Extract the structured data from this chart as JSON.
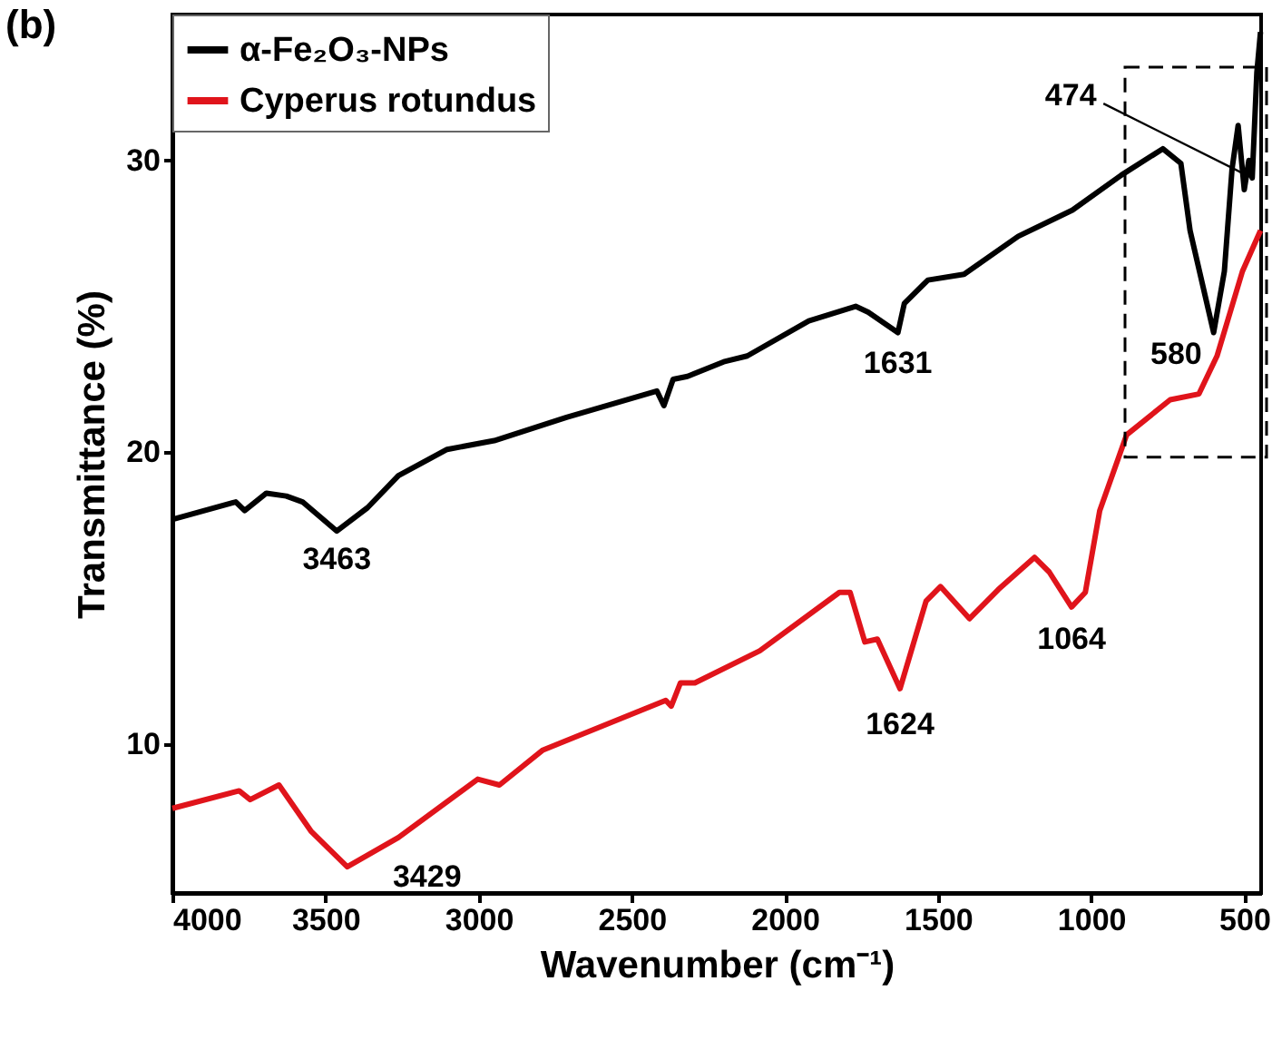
{
  "chart_data": {
    "type": "line",
    "xlabel": "Wavenumber (cm⁻¹)",
    "ylabel": "Transmittance (%)",
    "xlim": [
      4000,
      445
    ],
    "xticks": [
      4000,
      3500,
      3000,
      2500,
      2000,
      1500,
      1000,
      500
    ],
    "ylim": [
      4.9,
      35
    ],
    "yticks": [
      10,
      20,
      30
    ],
    "grid": false,
    "legend": "top left",
    "line_style": "solid",
    "marker": "none",
    "series": [
      {
        "name": "α-Fe₂O₃-NPs",
        "color": "#000000",
        "x": [
          4000,
          3793,
          3764,
          3693,
          3628,
          3575,
          3463,
          3363,
          3262,
          3103,
          2949,
          2713,
          2418,
          2395,
          2365,
          2318,
          2200,
          2123,
          1922,
          1769,
          1728,
          1631,
          1610,
          1533,
          1415,
          1238,
          1061,
          901,
          766,
          707,
          677,
          600,
          565,
          540,
          520,
          500,
          485,
          474,
          459,
          447
        ],
        "values": [
          17.7,
          18.3,
          18.0,
          18.6,
          18.5,
          18.3,
          17.3,
          18.1,
          19.2,
          20.1,
          20.4,
          21.2,
          22.1,
          21.6,
          22.5,
          22.6,
          23.1,
          23.3,
          24.5,
          25.0,
          24.8,
          24.1,
          25.1,
          25.9,
          26.1,
          27.4,
          28.3,
          29.5,
          30.4,
          29.9,
          27.6,
          24.1,
          26.2,
          29.7,
          31.2,
          29.0,
          30.0,
          29.4,
          33.0,
          34.4
        ]
      },
      {
        "name": "Cyperus rotundus",
        "color": "#e0141b",
        "x": [
          4000,
          3782,
          3746,
          3652,
          3546,
          3429,
          3262,
          3003,
          2932,
          2790,
          2389,
          2371,
          2341,
          2294,
          2082,
          1822,
          1787,
          1739,
          1698,
          1624,
          1539,
          1492,
          1397,
          1303,
          1185,
          1137,
          1064,
          1019,
          972,
          884,
          742,
          648,
          589,
          506,
          447
        ],
        "values": [
          7.8,
          8.4,
          8.1,
          8.6,
          7.0,
          5.8,
          6.8,
          8.8,
          8.6,
          9.8,
          11.5,
          11.3,
          12.1,
          12.1,
          13.2,
          15.2,
          15.2,
          13.5,
          13.6,
          11.9,
          14.9,
          15.4,
          14.3,
          15.3,
          16.4,
          15.9,
          14.7,
          15.2,
          18.0,
          20.6,
          21.8,
          22.0,
          23.3,
          26.2,
          27.6
        ]
      }
    ],
    "annotations": [
      "(b)",
      {
        "text": "3463",
        "x": 3463,
        "y": 17.3
      },
      {
        "text": "1631",
        "x": 1631,
        "y": 24.1
      },
      {
        "text": "580",
        "x": 580,
        "y": 24.1
      },
      {
        "text": "474",
        "x": 474,
        "y": 29.4
      },
      {
        "text": "3429",
        "x": 3429,
        "y": 5.8
      },
      {
        "text": "1624",
        "x": 1624,
        "y": 11.9
      },
      {
        "text": "1064",
        "x": 1064,
        "y": 14.7
      }
    ]
  }
}
